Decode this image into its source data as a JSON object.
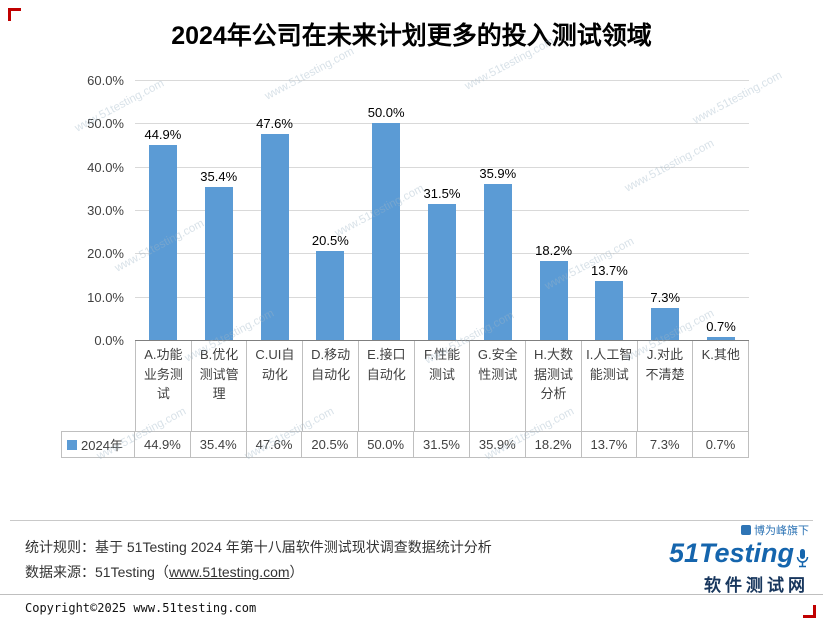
{
  "page": {
    "watermark": "www.51testing.com"
  },
  "chart_data": {
    "type": "bar",
    "title": "2024年公司在未来计划更多的投入测试领域",
    "categories": [
      "A.功能业务测试",
      "B.优化测试管理",
      "C.UI自动化",
      "D.移动自动化",
      "E.接口自动化",
      "F.性能测试",
      "G.安全性测试",
      "H.大数据测试分析",
      "I.人工智能测试",
      "J.对此不清楚",
      "K.其他"
    ],
    "series": [
      {
        "name": "2024年",
        "values": [
          44.9,
          35.4,
          47.6,
          20.5,
          50.0,
          31.5,
          35.9,
          18.2,
          13.7,
          7.3,
          0.7
        ]
      }
    ],
    "value_labels": [
      "44.9%",
      "35.4%",
      "47.6%",
      "20.5%",
      "50.0%",
      "31.5%",
      "35.9%",
      "18.2%",
      "13.7%",
      "7.3%",
      "0.7%"
    ],
    "ylim": [
      0,
      60
    ],
    "ytick_labels": [
      "0.0%",
      "10.0%",
      "20.0%",
      "30.0%",
      "40.0%",
      "50.0%",
      "60.0%"
    ],
    "grid": true,
    "bar_color": "#5B9BD5",
    "legend_position": "bottom-table"
  },
  "footer": {
    "rule_line": "统计规则：基于 51Testing 2024 年第十八届软件测试现状调查数据统计分析",
    "source_prefix": "数据来源：51Testing（",
    "source_link": "www.51testing.com",
    "source_suffix": "）",
    "copyright": "Copyright©2025 www.51testing.com"
  },
  "logo": {
    "tagline": "博为峰旗下",
    "brand": "51Testing",
    "subtitle": "软件测试网"
  }
}
